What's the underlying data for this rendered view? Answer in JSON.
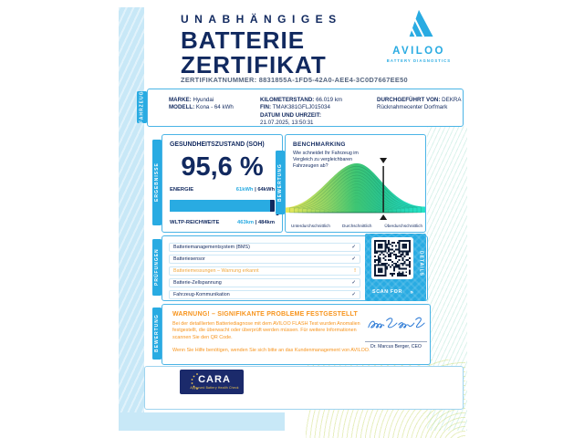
{
  "colors": {
    "accent": "#29abe2",
    "navy": "#11295f",
    "warning_orange": "#f7941d",
    "strip_blue": "#c8e8f7"
  },
  "header": {
    "kicker": "UNABHÄNGIGES",
    "title_line1": "BATTERIE",
    "title_line2": "ZERTIFIKAT",
    "cert_label": "ZERTIFIKATNUMMER:",
    "cert_number": "8831855A-1FD5-42A0-AEE4-3C0D7667EE50",
    "logo": {
      "name": "AVILOO",
      "tagline": "BATTERY DIAGNOSTICS"
    }
  },
  "vehicle": {
    "tab": "FAHRZEUG",
    "marke_label": "MARKE:",
    "marke": "Hyundai",
    "modell_label": "MODELL:",
    "modell": "Kona - 64 kWh",
    "km_label": "KILOMETERSTAND:",
    "km": "66.019 km",
    "fin_label": "FIN:",
    "fin": "TMAK381GFLJ015034",
    "datum_label": "DATUM UND UHRZEIT:",
    "datum": "21.07.2025, 13:50:31",
    "durchgefuehrt_label": "DURCHGEFÜHRT VON:",
    "durchgefuehrt_value": "DEKRA",
    "durchgefuehrt_value2": "Rücknahmecenter Dorfmark"
  },
  "results": {
    "tab": "ERGEBNISSE",
    "soh_title": "GESUNDHEITSZUSTAND (SOH)",
    "soh_value": "95,6 %",
    "soh_percent": 95.6,
    "energie_label": "ENERGIE",
    "energie_value": "61kWh",
    "separator": " | ",
    "energie_total": "64kWh",
    "wltp_label": "WLTP-REICHWEITE",
    "wltp_value": "463km",
    "wltp_total": "484km",
    "marker_down_icon": "▼",
    "marker_up_icon": "▲"
  },
  "benchmark": {
    "tab": "BEWERTUNG",
    "title": "BENCHMARKING",
    "question": "Wie schneidet Ihr Fahrzeug im Vergleich zu vergleichbaren Fahrzeugen ab?",
    "axis_labels": [
      "Unterdurchschnittlich",
      "Durchschnittlich",
      "Überdurchschnittlich"
    ],
    "marker_position": 0.7,
    "marker_down_icon": "▼",
    "marker_up_icon": "▲"
  },
  "checks": {
    "tab": "PRÜFUNGEN",
    "items": [
      {
        "label": "Batteriemanagementsystem (BMS)",
        "status": "ok",
        "icon": "✓"
      },
      {
        "label": "Batteriesensor",
        "status": "ok",
        "icon": "✓"
      },
      {
        "label": "Batteriemessungen – Warnung erkannt",
        "status": "warning",
        "icon": "!"
      },
      {
        "label": "Batterie-Zellspannung",
        "status": "ok",
        "icon": "✓"
      },
      {
        "label": "Fahrzeug-Kommunikation",
        "status": "ok",
        "icon": "✓"
      }
    ],
    "qr": {
      "scan_label": "SCAN FOR",
      "chevron": "»",
      "details_label": "DETAILS"
    }
  },
  "warning": {
    "tab": "BEWERTUNG",
    "title": "WARNUNG! – SIGNIFIKANTE PROBLEME FESTGESTELLT",
    "body": "Bei der detaillierten Batteriediagnose mit dem AVILOO FLASH Test wurden Anomalien festgestellt, die überwacht oder überprüft werden müssen. Für weitere Informationen scannen Sie den QR Code.",
    "help": "Wenn Sie Hilfe benötigen, wenden Sie sich bitte an das Kundenmanagement von AVILOO.",
    "signature_name": "Dr. Marcus Berger, CEO"
  },
  "footer": {
    "cara_name": "CARA",
    "cara_subtitle": "Approved Battery Health Check"
  }
}
